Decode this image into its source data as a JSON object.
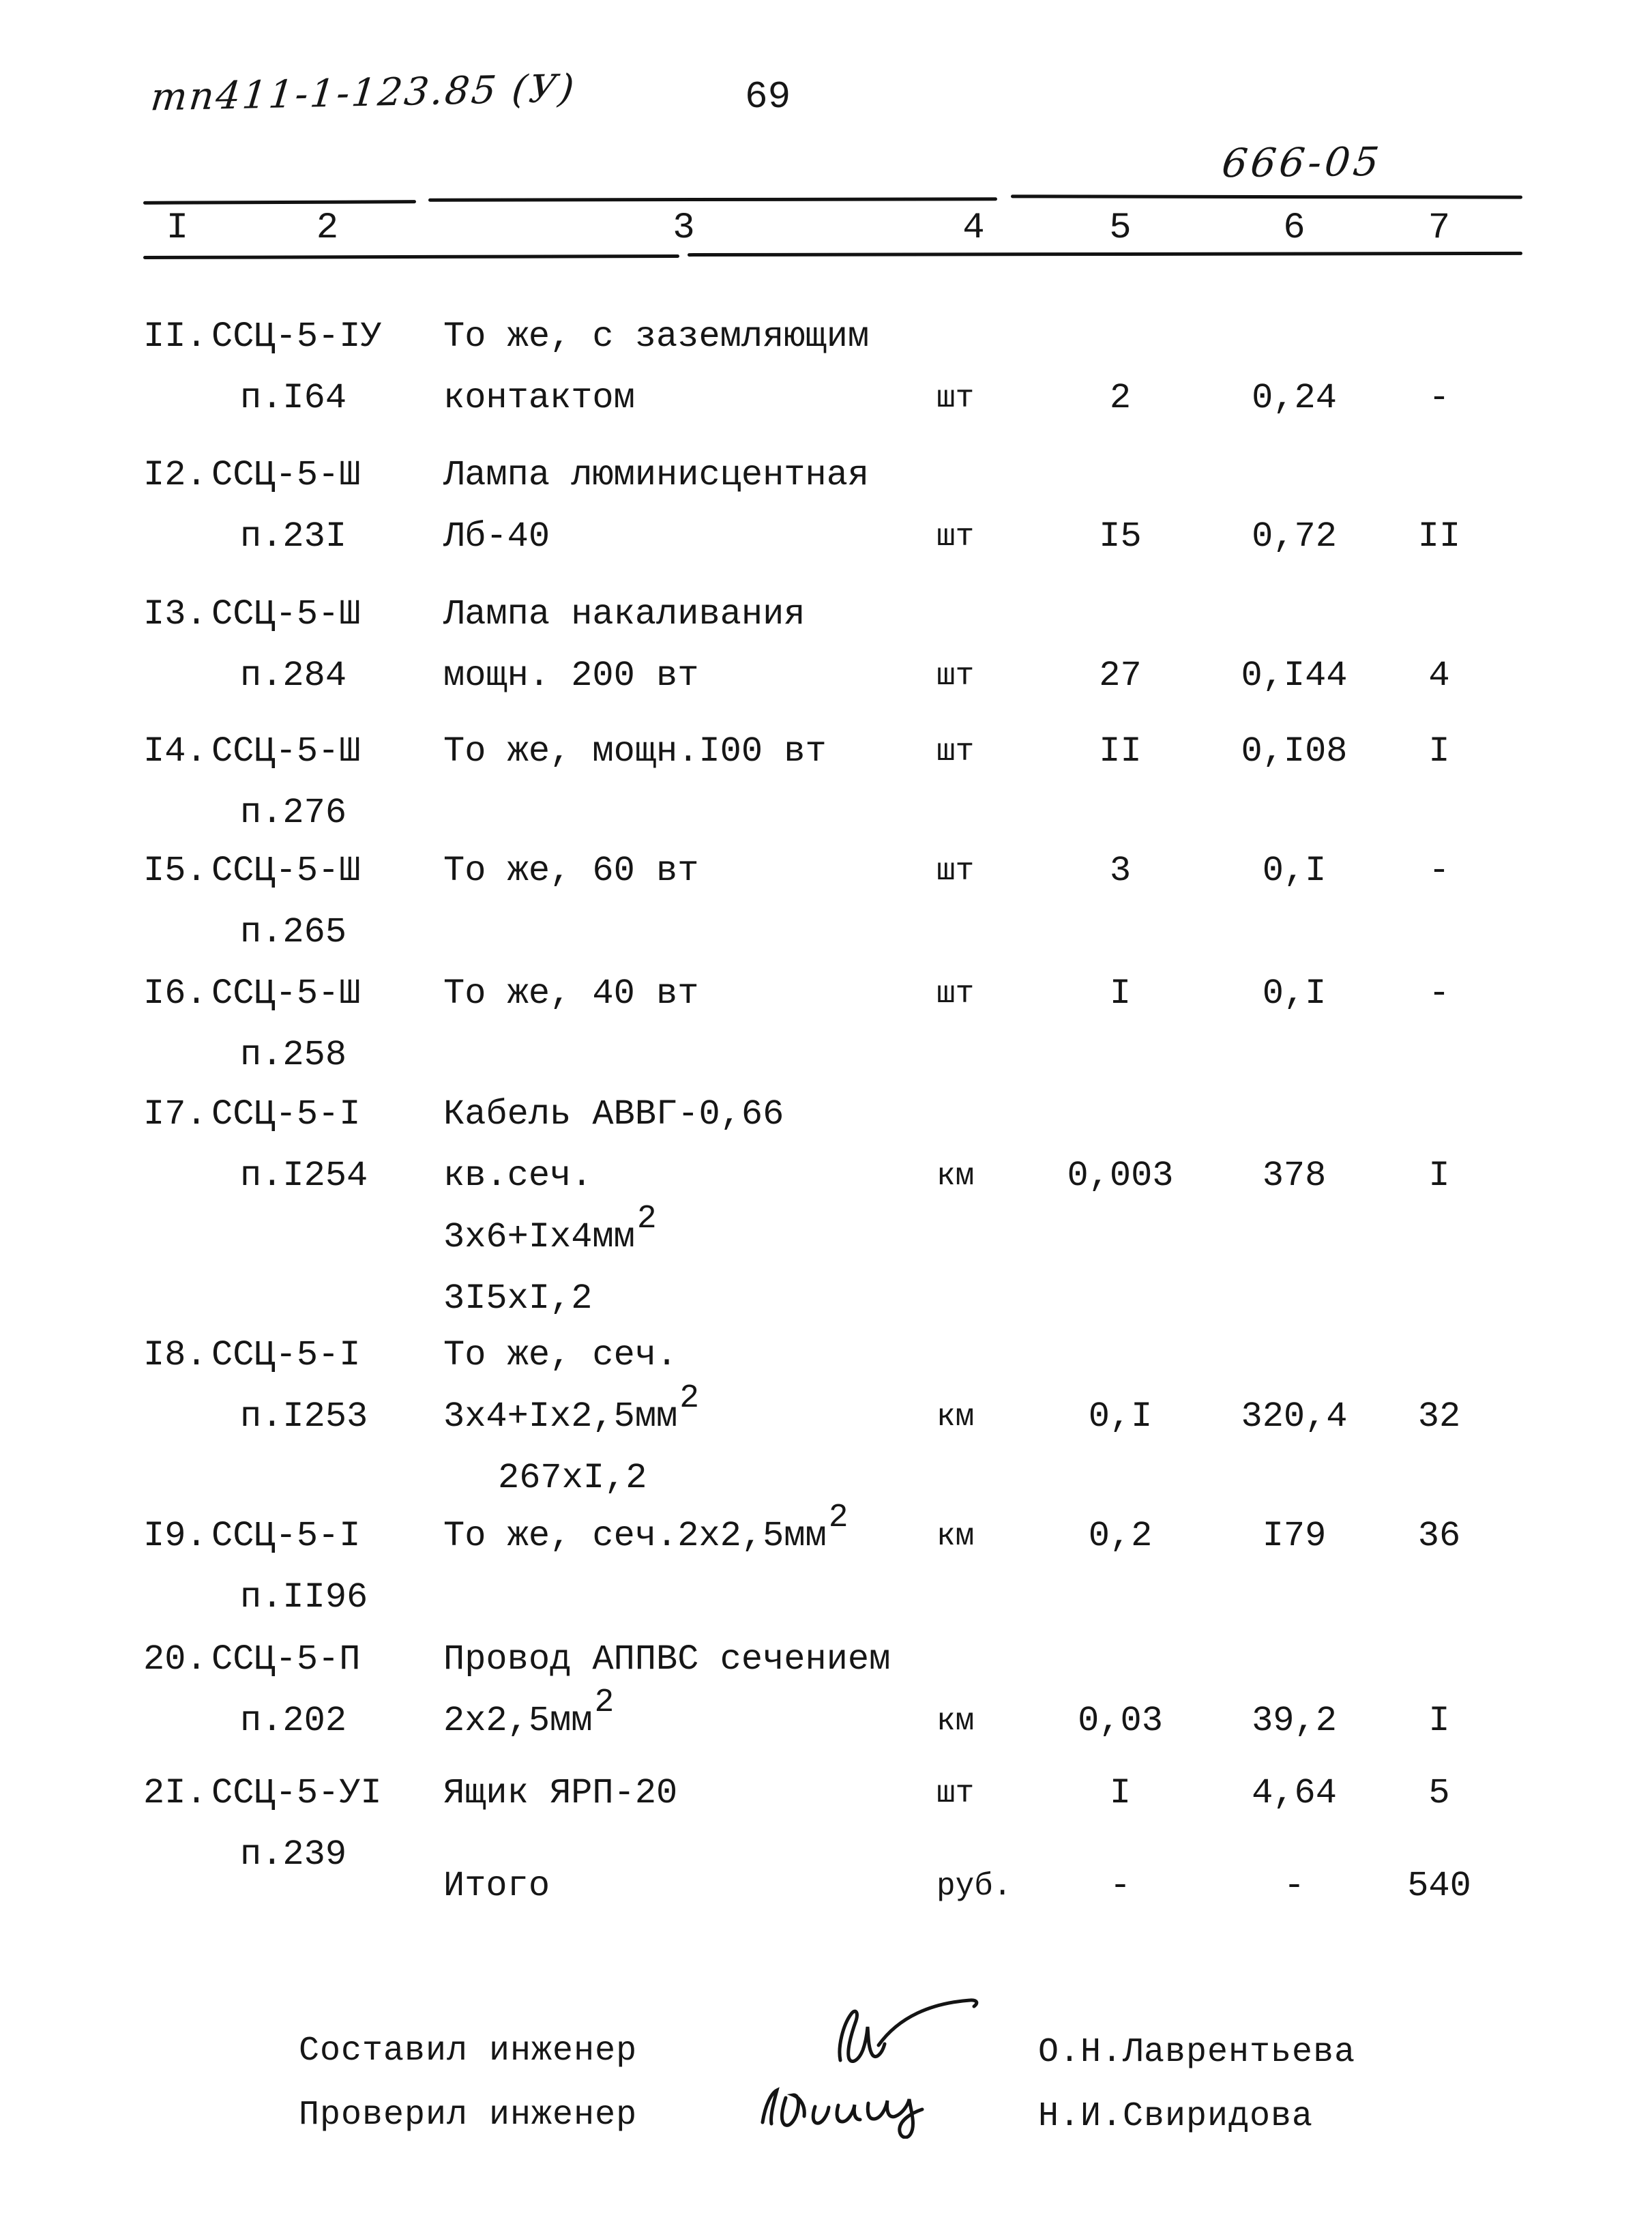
{
  "page": {
    "doc_number": "тп411-1-123.85 (У)",
    "page_number": "69",
    "code_stamp": "666-05"
  },
  "table": {
    "column_headers": [
      "I",
      "2",
      "3",
      "4",
      "5",
      "6",
      "7"
    ],
    "rows": [
      {
        "lines": [
          {
            "no": "II.",
            "code": "ССЦ-5-IУ",
            "desc": "То же, с заземляющим"
          },
          {
            "sub": "п.I64",
            "desc": "контактом",
            "unit": "шт",
            "qty": "2",
            "price": "0,24",
            "col7": "-"
          }
        ]
      },
      {
        "lines": [
          {
            "no": "I2.",
            "code": "ССЦ-5-Ш",
            "desc": "Лампа люминисцентная"
          },
          {
            "sub": "п.23I",
            "desc": "Лб-40",
            "unit": "шт",
            "qty": "I5",
            "price": "0,72",
            "col7": "II"
          }
        ]
      },
      {
        "lines": [
          {
            "no": "I3.",
            "code": "ССЦ-5-Ш",
            "desc": "Лампа накаливания"
          },
          {
            "sub": "п.284",
            "desc": "мощн. 200 вт",
            "unit": "шт",
            "qty": "27",
            "price": "0,I44",
            "col7": "4"
          }
        ]
      },
      {
        "lines": [
          {
            "no": "I4.",
            "code": "ССЦ-5-Ш",
            "desc": "То же, мощн.I00 вт",
            "unit": "шт",
            "qty": "II",
            "price": "0,I08",
            "col7": "I"
          },
          {
            "sub": "п.276"
          }
        ]
      },
      {
        "lines": [
          {
            "no": "I5.",
            "code": "ССЦ-5-Ш",
            "desc": "То же, 60 вт",
            "unit": "шт",
            "qty": "3",
            "price": "0,I",
            "col7": "-"
          },
          {
            "sub": "п.265"
          }
        ]
      },
      {
        "lines": [
          {
            "no": "I6.",
            "code": "ССЦ-5-Ш",
            "desc": "То же, 40 вт",
            "unit": "шт",
            "qty": "I",
            "price": "0,I",
            "col7": "-"
          },
          {
            "sub": "п.258"
          }
        ]
      },
      {
        "lines": [
          {
            "no": "I7.",
            "code": "ССЦ-5-I",
            "desc": "Кабель АВВГ-0,66"
          },
          {
            "sub": "п.I254",
            "desc": "кв.сеч.",
            "unit": "км",
            "qty": "0,003",
            "price": "378",
            "col7": "I"
          },
          {
            "desc": "3х6+Iх4мм",
            "sup": "2"
          },
          {
            "desc": "3I5хI,2"
          }
        ]
      },
      {
        "lines": [
          {
            "no": "I8.",
            "code": "ССЦ-5-I",
            "desc": "То же, сеч."
          },
          {
            "sub": "п.I253",
            "desc": "3х4+Iх2,5мм",
            "sup": "2",
            "unit": "км",
            "qty": "0,I",
            "price": "320,4",
            "col7": "32"
          },
          {
            "desc": "267хI,2",
            "indent": true
          }
        ]
      },
      {
        "lines": [
          {
            "no": "I9.",
            "code": "ССЦ-5-I",
            "desc": "То же, сеч.2х2,5мм",
            "sup": "2",
            "unit": "км",
            "qty": "0,2",
            "price": "I79",
            "col7": "36"
          },
          {
            "sub": "п.II96"
          }
        ]
      },
      {
        "lines": [
          {
            "no": "20.",
            "code": "ССЦ-5-П",
            "desc": "Провод АППВС сечением"
          },
          {
            "sub": "п.202",
            "desc": "2х2,5мм",
            "sup": "2",
            "unit": "км",
            "qty": "0,03",
            "price": "39,2",
            "col7": "I"
          }
        ]
      },
      {
        "lines": [
          {
            "no": "2I.",
            "code": "ССЦ-5-УI",
            "desc": "Ящик ЯРП-20",
            "unit": "шт",
            "qty": "I",
            "price": "4,64",
            "col7": "5"
          },
          {
            "sub": "п.239"
          }
        ]
      }
    ],
    "total": {
      "label": "Итого",
      "unit": "руб.",
      "qty": "-",
      "price": "-",
      "col7": "540"
    }
  },
  "footer": {
    "composed": {
      "label": "Составил инженер",
      "name": "О.Н.Лаврентьева"
    },
    "checked": {
      "label": "Проверил инженер",
      "name": "Н.И.Свиридова"
    }
  },
  "colors": {
    "ink": "#161616",
    "paper": "#ffffff"
  }
}
